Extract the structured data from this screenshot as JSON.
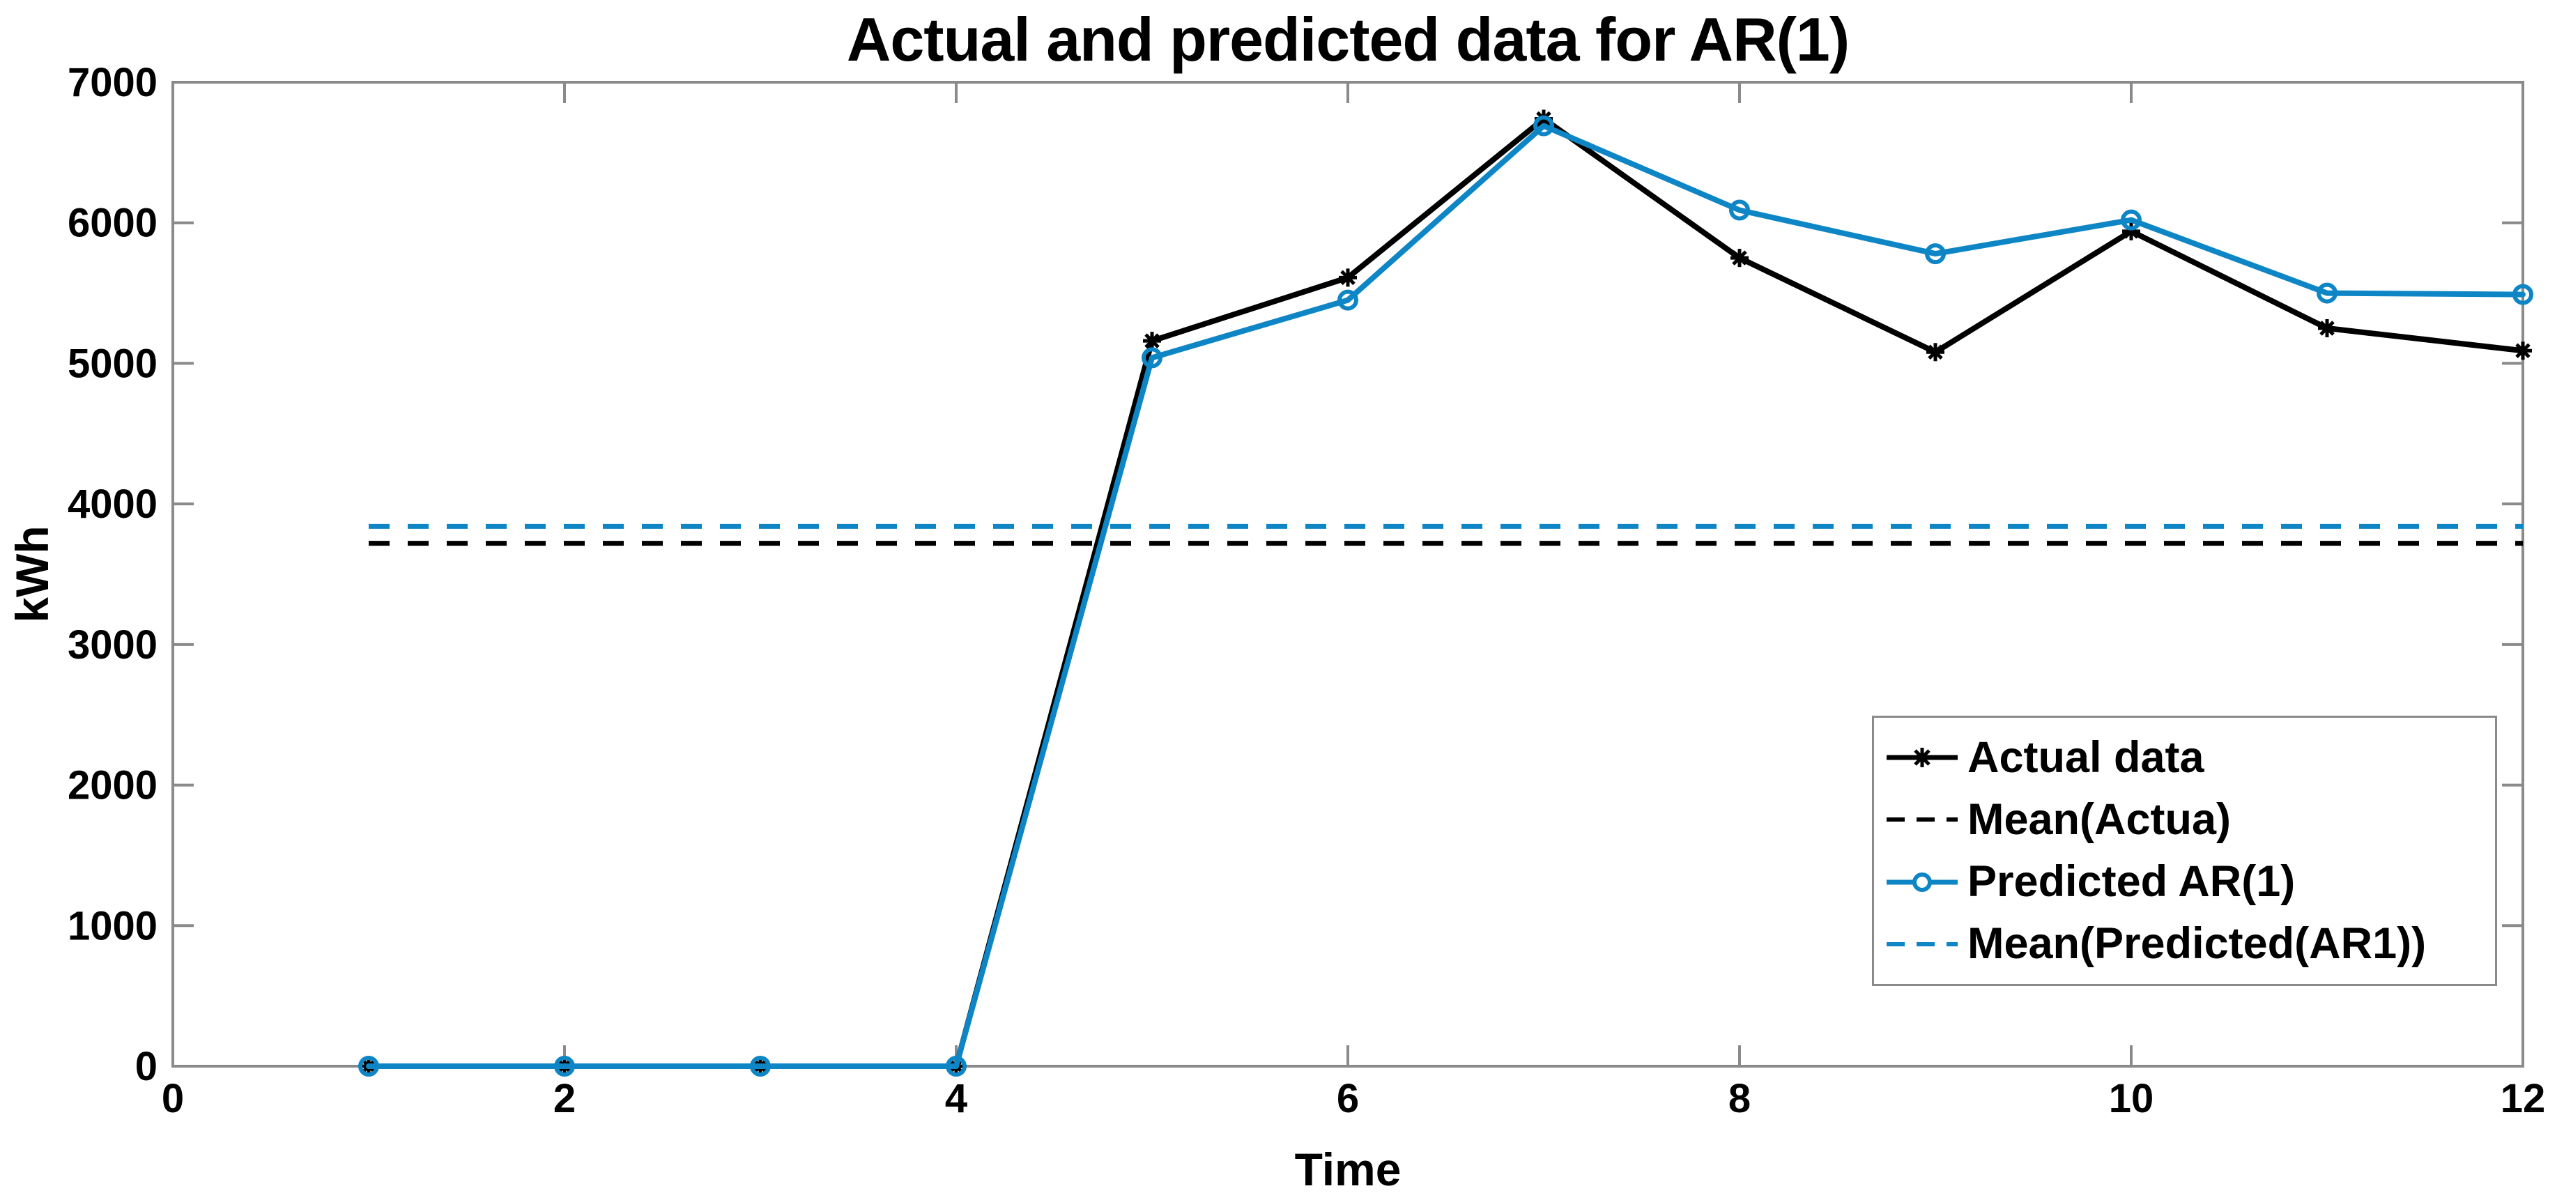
{
  "chart_data": {
    "type": "line",
    "title": "Actual and predicted data for AR(1)",
    "xlabel": "Time",
    "ylabel": "kWh",
    "xlim": [
      0,
      12
    ],
    "ylim": [
      0,
      7000
    ],
    "xticks": [
      0,
      2,
      4,
      6,
      8,
      10,
      12
    ],
    "yticks": [
      0,
      1000,
      2000,
      3000,
      4000,
      5000,
      6000,
      7000
    ],
    "grid": false,
    "box": true,
    "tick_direction": "in",
    "legend_position": "lower-right-inside",
    "x": [
      1,
      2,
      3,
      4,
      5,
      6,
      7,
      8,
      9,
      10,
      11,
      12
    ],
    "series": [
      {
        "name": "Actual data",
        "type": "line",
        "color": "#000000",
        "line_style": "solid",
        "marker": "asterisk",
        "values": [
          0,
          0,
          0,
          0,
          5160,
          5610,
          6740,
          5750,
          5080,
          5940,
          5250,
          5090
        ]
      },
      {
        "name": "Mean(Actua)",
        "type": "hline",
        "color": "#000000",
        "line_style": "dashed",
        "marker": "none",
        "value": 3720,
        "span_x": [
          1,
          12
        ]
      },
      {
        "name": "Predicted AR(1)",
        "type": "line",
        "color": "#0e86c6",
        "line_style": "solid",
        "marker": "circle",
        "values": [
          0,
          0,
          0,
          0,
          5040,
          5450,
          6690,
          6090,
          5780,
          6020,
          5500,
          5490
        ]
      },
      {
        "name": "Mean(Predicted(AR1))",
        "type": "hline",
        "color": "#0e86c6",
        "line_style": "dashed",
        "marker": "none",
        "value": 3840,
        "span_x": [
          1,
          12
        ]
      }
    ],
    "axis_color": "#8a8a8a",
    "text_color": "#000000",
    "background": "#ffffff"
  }
}
